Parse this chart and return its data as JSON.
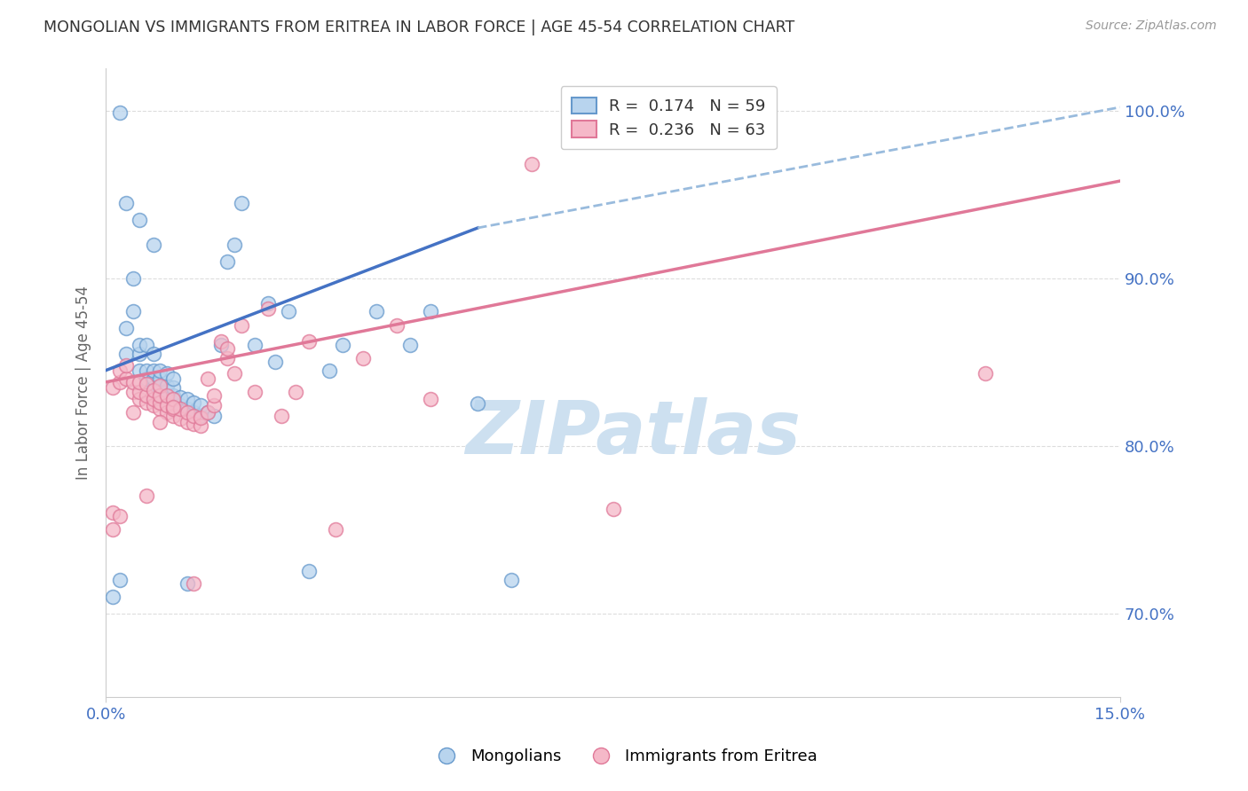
{
  "title": "MONGOLIAN VS IMMIGRANTS FROM ERITREA IN LABOR FORCE | AGE 45-54 CORRELATION CHART",
  "source": "Source: ZipAtlas.com",
  "ylabel": "In Labor Force | Age 45-54",
  "xmin": 0.0,
  "xmax": 0.15,
  "ymin": 0.65,
  "ymax": 1.025,
  "yticks": [
    0.7,
    0.8,
    0.9,
    1.0
  ],
  "ytick_labels": [
    "70.0%",
    "80.0%",
    "90.0%",
    "100.0%"
  ],
  "legend_R1": "0.174",
  "legend_N1": "59",
  "legend_R2": "0.236",
  "legend_N2": "63",
  "color_mongolian_fill": "#b8d4ee",
  "color_mongolian_edge": "#6699cc",
  "color_eritrea_fill": "#f5b8c8",
  "color_eritrea_edge": "#e07898",
  "color_line_mongolian": "#4472c4",
  "color_line_eritrea": "#e07898",
  "color_dash_mongolian": "#99bbdd",
  "mongolian_x": [
    0.001,
    0.002,
    0.003,
    0.003,
    0.004,
    0.004,
    0.005,
    0.005,
    0.005,
    0.006,
    0.006,
    0.006,
    0.007,
    0.007,
    0.007,
    0.007,
    0.008,
    0.008,
    0.008,
    0.008,
    0.009,
    0.009,
    0.009,
    0.009,
    0.01,
    0.01,
    0.01,
    0.01,
    0.011,
    0.011,
    0.012,
    0.012,
    0.013,
    0.013,
    0.014,
    0.014,
    0.015,
    0.016,
    0.017,
    0.018,
    0.019,
    0.02,
    0.022,
    0.024,
    0.025,
    0.027,
    0.03,
    0.033,
    0.035,
    0.04,
    0.045,
    0.048,
    0.055,
    0.06,
    0.002,
    0.003,
    0.005,
    0.007,
    0.012
  ],
  "mongolian_y": [
    0.71,
    0.72,
    0.855,
    0.87,
    0.88,
    0.9,
    0.845,
    0.855,
    0.86,
    0.84,
    0.845,
    0.86,
    0.835,
    0.84,
    0.845,
    0.855,
    0.83,
    0.835,
    0.84,
    0.845,
    0.828,
    0.832,
    0.836,
    0.843,
    0.826,
    0.83,
    0.835,
    0.84,
    0.824,
    0.829,
    0.822,
    0.828,
    0.82,
    0.826,
    0.818,
    0.824,
    0.82,
    0.818,
    0.86,
    0.91,
    0.92,
    0.945,
    0.86,
    0.885,
    0.85,
    0.88,
    0.725,
    0.845,
    0.86,
    0.88,
    0.86,
    0.88,
    0.825,
    0.72,
    0.999,
    0.945,
    0.935,
    0.92,
    0.718
  ],
  "eritrea_x": [
    0.001,
    0.001,
    0.002,
    0.002,
    0.003,
    0.003,
    0.004,
    0.004,
    0.005,
    0.005,
    0.005,
    0.006,
    0.006,
    0.006,
    0.007,
    0.007,
    0.007,
    0.008,
    0.008,
    0.008,
    0.008,
    0.009,
    0.009,
    0.009,
    0.01,
    0.01,
    0.01,
    0.011,
    0.011,
    0.012,
    0.012,
    0.013,
    0.013,
    0.014,
    0.014,
    0.015,
    0.015,
    0.016,
    0.016,
    0.017,
    0.018,
    0.018,
    0.019,
    0.02,
    0.022,
    0.024,
    0.026,
    0.028,
    0.03,
    0.034,
    0.038,
    0.043,
    0.048,
    0.063,
    0.075,
    0.13,
    0.001,
    0.002,
    0.004,
    0.006,
    0.008,
    0.01,
    0.013
  ],
  "eritrea_y": [
    0.76,
    0.835,
    0.838,
    0.845,
    0.84,
    0.848,
    0.832,
    0.838,
    0.828,
    0.832,
    0.838,
    0.826,
    0.83,
    0.837,
    0.824,
    0.828,
    0.833,
    0.822,
    0.826,
    0.83,
    0.836,
    0.82,
    0.824,
    0.83,
    0.818,
    0.822,
    0.828,
    0.816,
    0.822,
    0.814,
    0.82,
    0.813,
    0.818,
    0.812,
    0.817,
    0.82,
    0.84,
    0.824,
    0.83,
    0.862,
    0.852,
    0.858,
    0.843,
    0.872,
    0.832,
    0.882,
    0.818,
    0.832,
    0.862,
    0.75,
    0.852,
    0.872,
    0.828,
    0.968,
    0.762,
    0.843,
    0.75,
    0.758,
    0.82,
    0.77,
    0.814,
    0.823,
    0.718
  ],
  "background_color": "#ffffff",
  "grid_color": "#dddddd",
  "title_color": "#333333",
  "tick_color_blue": "#4472c4",
  "line_mongolian_solid_end_x": 0.055,
  "line_mongolian_dash_start_x": 0.055,
  "watermark_text": "ZIPatlas",
  "watermark_color": "#cde0f0",
  "watermark_fontsize": 60
}
